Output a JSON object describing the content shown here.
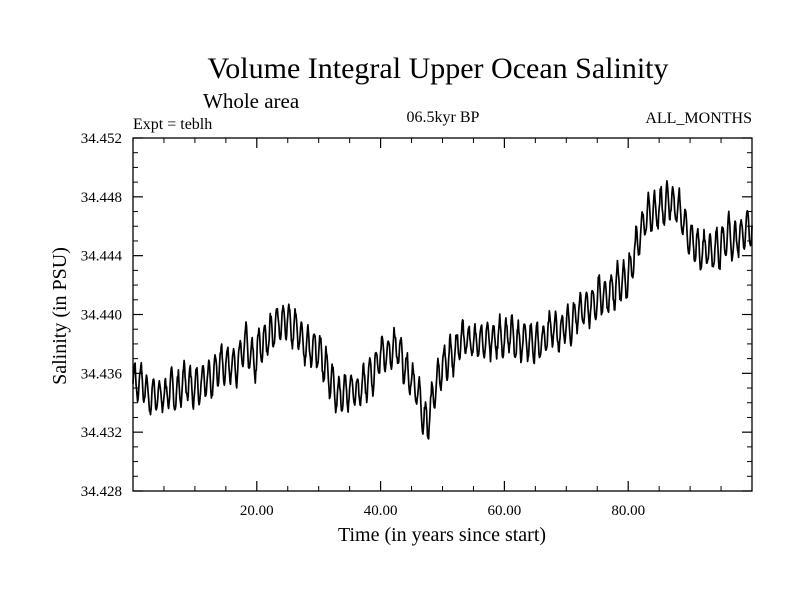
{
  "chart_data": {
    "type": "line",
    "title": "Volume Integral Upper Ocean Salinity",
    "subtitle": "Whole area",
    "experiment_label": "Expt = teblh",
    "period_label": "06.5kyr BP",
    "months_label": "ALL_MONTHS",
    "xlabel": "Time (in years since start)",
    "ylabel": "Salinity (in PSU)",
    "xlim": [
      0,
      100
    ],
    "ylim": [
      34.428,
      34.452
    ],
    "x_ticks": [
      20,
      40,
      60,
      80
    ],
    "x_tick_labels": [
      "20.00",
      "40.00",
      "60.00",
      "80.00"
    ],
    "y_ticks": [
      34.428,
      34.432,
      34.436,
      34.44,
      34.444,
      34.448,
      34.452
    ],
    "y_tick_labels": [
      "34.428",
      "34.432",
      "34.436",
      "34.440",
      "34.444",
      "34.448",
      "34.452"
    ],
    "grid": false,
    "series": [
      {
        "name": "salinity",
        "color": "#000000",
        "samples_per_year": 12,
        "seasonal_amplitude": 0.0012,
        "trend": {
          "x": [
            0,
            2,
            5,
            10,
            15,
            20,
            23,
            25,
            27,
            30,
            33,
            37,
            40,
            43,
            46,
            47.5,
            49,
            52,
            55,
            60,
            65,
            70,
            75,
            80,
            83,
            86,
            88,
            90,
            92,
            95,
            98,
            100
          ],
          "y": [
            34.4355,
            34.4345,
            34.4345,
            34.4352,
            34.4365,
            34.4378,
            34.4392,
            34.4392,
            34.4385,
            34.4375,
            34.4345,
            34.4352,
            34.4372,
            34.4374,
            34.4345,
            34.4325,
            34.4352,
            34.4378,
            34.4385,
            34.4382,
            34.4382,
            34.4392,
            34.4408,
            34.4428,
            34.4468,
            34.4478,
            34.4476,
            34.4448,
            34.4442,
            34.4445,
            34.4455,
            34.4462
          ]
        }
      }
    ]
  }
}
